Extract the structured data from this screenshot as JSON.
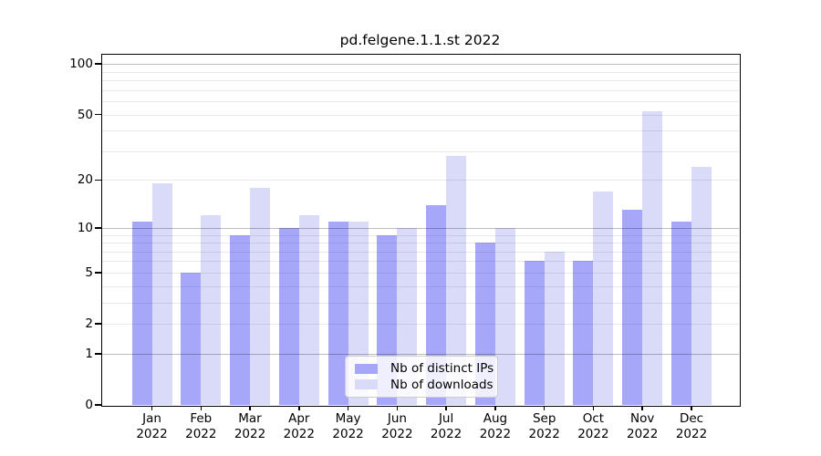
{
  "chart_data": {
    "type": "bar",
    "title": "pd.felgene.1.1.st 2022",
    "categories": [
      "Jan",
      "Feb",
      "Mar",
      "Apr",
      "May",
      "Jun",
      "Jul",
      "Aug",
      "Sep",
      "Oct",
      "Nov",
      "Dec"
    ],
    "category_year_line": "2022",
    "series": [
      {
        "name": "Nb of distinct IPs",
        "color": "#a7a7f9",
        "values": [
          11,
          5,
          9,
          10,
          11,
          9,
          14,
          8,
          6,
          6,
          13,
          11
        ]
      },
      {
        "name": "Nb of downloads",
        "color": "#dadaf9",
        "values": [
          19,
          12,
          18,
          12,
          11,
          10,
          28,
          10,
          7,
          17,
          52,
          24
        ]
      }
    ],
    "y_scale": "log10(1+value)",
    "ylim": [
      0,
      113
    ],
    "y_tick_values": [
      0,
      1,
      2,
      5,
      10,
      20,
      50,
      100
    ],
    "grid": true,
    "grid_major_values": [
      1,
      10,
      100
    ],
    "grid_minor_values": [
      2,
      3,
      4,
      5,
      6,
      7,
      8,
      9,
      20,
      30,
      40,
      50,
      60,
      70,
      80,
      90
    ],
    "legend_position": "lower center inside plot"
  },
  "colors": {
    "background": "#ffffff",
    "axis": "#000000",
    "grid_major": "rgba(0,0,0,0.26)",
    "grid_minor": "rgba(0,0,0,0.085)",
    "legend_border": "#cccccc",
    "legend_background": "rgba(255,255,255,0.82)"
  }
}
